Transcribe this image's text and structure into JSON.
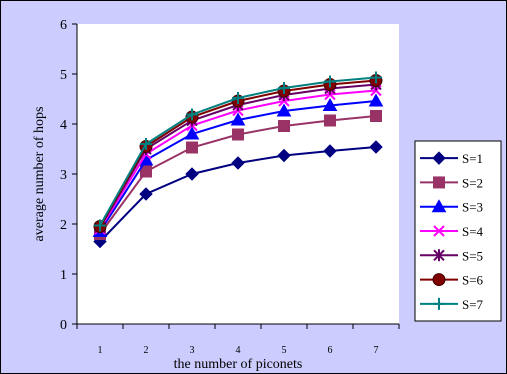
{
  "chart_data": {
    "type": "line",
    "title": "",
    "xlabel": "the number of piconets",
    "ylabel": "average number of hops",
    "categories": [
      "1",
      "2",
      "3",
      "4",
      "5",
      "6",
      "7"
    ],
    "x": [
      1,
      2,
      3,
      4,
      5,
      6,
      7
    ],
    "ylim": [
      0,
      6
    ],
    "yticks": [
      "0",
      "1",
      "2",
      "3",
      "4",
      "5",
      "6"
    ],
    "grid": false,
    "legend_position": "right",
    "colors": {
      "frame_background": "#ccccff",
      "plot_background": "#ffffff",
      "axis": "#000000"
    },
    "series": [
      {
        "name": "S=1",
        "color": "#000080",
        "marker": "diamond",
        "values": [
          1.65,
          2.6,
          3.0,
          3.22,
          3.37,
          3.46,
          3.54
        ]
      },
      {
        "name": "S=2",
        "color": "#993366",
        "marker": "square",
        "values": [
          1.8,
          3.05,
          3.53,
          3.79,
          3.96,
          4.07,
          4.16
        ]
      },
      {
        "name": "S=3",
        "color": "#0000ff",
        "marker": "triangle",
        "values": [
          1.85,
          3.28,
          3.8,
          4.08,
          4.26,
          4.37,
          4.46
        ]
      },
      {
        "name": "S=4",
        "color": "#ff00ff",
        "marker": "x",
        "values": [
          1.9,
          3.4,
          3.97,
          4.27,
          4.46,
          4.59,
          4.67
        ]
      },
      {
        "name": "S=5",
        "color": "#660066",
        "marker": "star",
        "values": [
          1.93,
          3.5,
          4.07,
          4.38,
          4.58,
          4.71,
          4.79
        ]
      },
      {
        "name": "S=6",
        "color": "#800000",
        "marker": "circle",
        "values": [
          1.95,
          3.55,
          4.14,
          4.46,
          4.66,
          4.79,
          4.87
        ]
      },
      {
        "name": "S=7",
        "color": "#008080",
        "marker": "plus",
        "values": [
          1.97,
          3.6,
          4.19,
          4.52,
          4.72,
          4.85,
          4.93
        ]
      }
    ]
  }
}
